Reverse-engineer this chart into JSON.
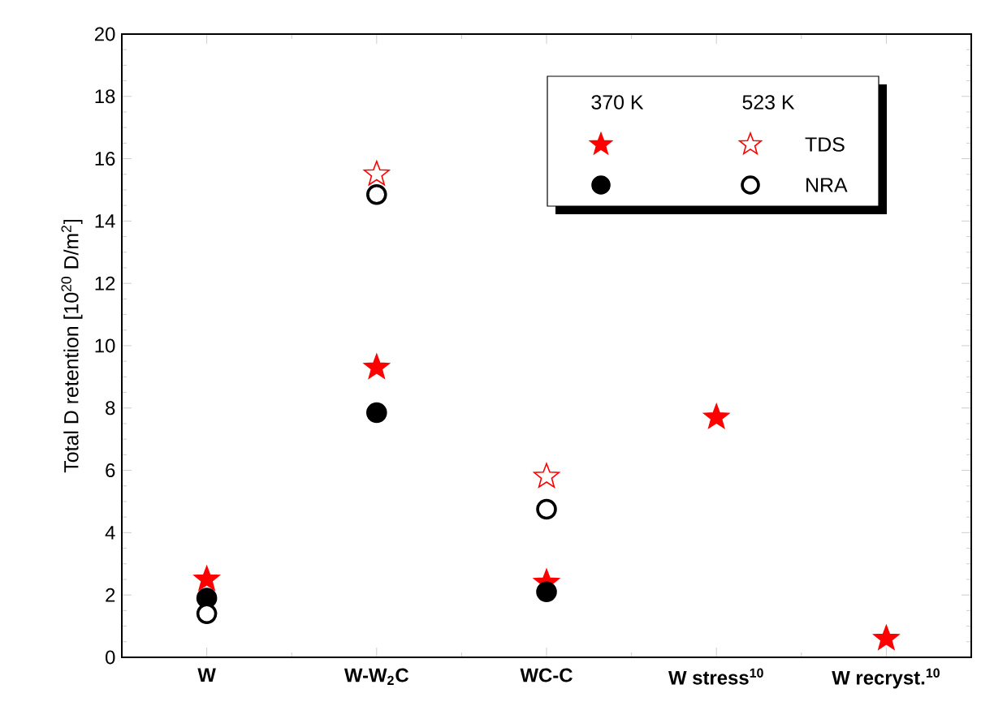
{
  "chart_data": {
    "type": "scatter",
    "ylabel": "Total D retention [10$^{20}$ D/m$^{2}$]",
    "categories": [
      "W",
      "W-W$_{2}$C",
      "WC-C",
      "W stress$^{10}$",
      "W recryst.$^{10}$"
    ],
    "series": [
      {
        "color": "#ff0000",
        "marker": "star",
        "values": [
          2.5,
          9.3,
          2.4,
          7.7,
          0.6
        ]
      },
      {
        "color": "#000000",
        "marker": "circle",
        "values": [
          1.9,
          7.85,
          2.1,
          null,
          null
        ]
      },
      {
        "name": "TDS",
        "color": "#ff0000",
        "marker": "star",
        "values": [
          null,
          15.5,
          5.8,
          null,
          null
        ]
      },
      {
        "name": "NRA",
        "color": "#000000",
        "marker": "circle",
        "values": [
          1.4,
          14.85,
          4.75,
          null,
          null
        ]
      }
    ],
    "annotations": [
      "370 K",
      "523 K"
    ],
    "ylim": [
      0,
      20
    ],
    "yticks": [
      0,
      2,
      4,
      6,
      8,
      10,
      12,
      14,
      16,
      18,
      20
    ],
    "legend": "top right",
    "grid": false
  }
}
